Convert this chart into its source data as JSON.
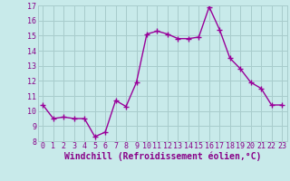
{
  "x": [
    0,
    1,
    2,
    3,
    4,
    5,
    6,
    7,
    8,
    9,
    10,
    11,
    12,
    13,
    14,
    15,
    16,
    17,
    18,
    19,
    20,
    21,
    22,
    23
  ],
  "y": [
    10.4,
    9.5,
    9.6,
    9.5,
    9.5,
    8.3,
    8.6,
    10.7,
    10.3,
    11.9,
    15.1,
    15.3,
    15.1,
    14.8,
    14.8,
    14.9,
    16.9,
    15.4,
    13.5,
    12.8,
    11.9,
    11.5,
    10.4,
    10.4
  ],
  "line_color": "#990099",
  "marker": "+",
  "marker_size": 4,
  "marker_lw": 1.0,
  "bg_color": "#c8eaea",
  "grid_color": "#a8cccc",
  "xlabel": "Windchill (Refroidissement éolien,°C)",
  "xlabel_color": "#880088",
  "tick_color": "#880088",
  "ylim": [
    8,
    17
  ],
  "xlim_min": -0.5,
  "xlim_max": 23.5,
  "yticks": [
    8,
    9,
    10,
    11,
    12,
    13,
    14,
    15,
    16,
    17
  ],
  "xticks": [
    0,
    1,
    2,
    3,
    4,
    5,
    6,
    7,
    8,
    9,
    10,
    11,
    12,
    13,
    14,
    15,
    16,
    17,
    18,
    19,
    20,
    21,
    22,
    23
  ],
  "xtick_labels": [
    "0",
    "1",
    "2",
    "3",
    "4",
    "5",
    "6",
    "7",
    "8",
    "9",
    "10",
    "11",
    "12",
    "13",
    "14",
    "15",
    "16",
    "17",
    "18",
    "19",
    "20",
    "21",
    "22",
    "23"
  ],
  "tick_fontsize": 6,
  "xlabel_fontsize": 7,
  "line_width": 1.0
}
